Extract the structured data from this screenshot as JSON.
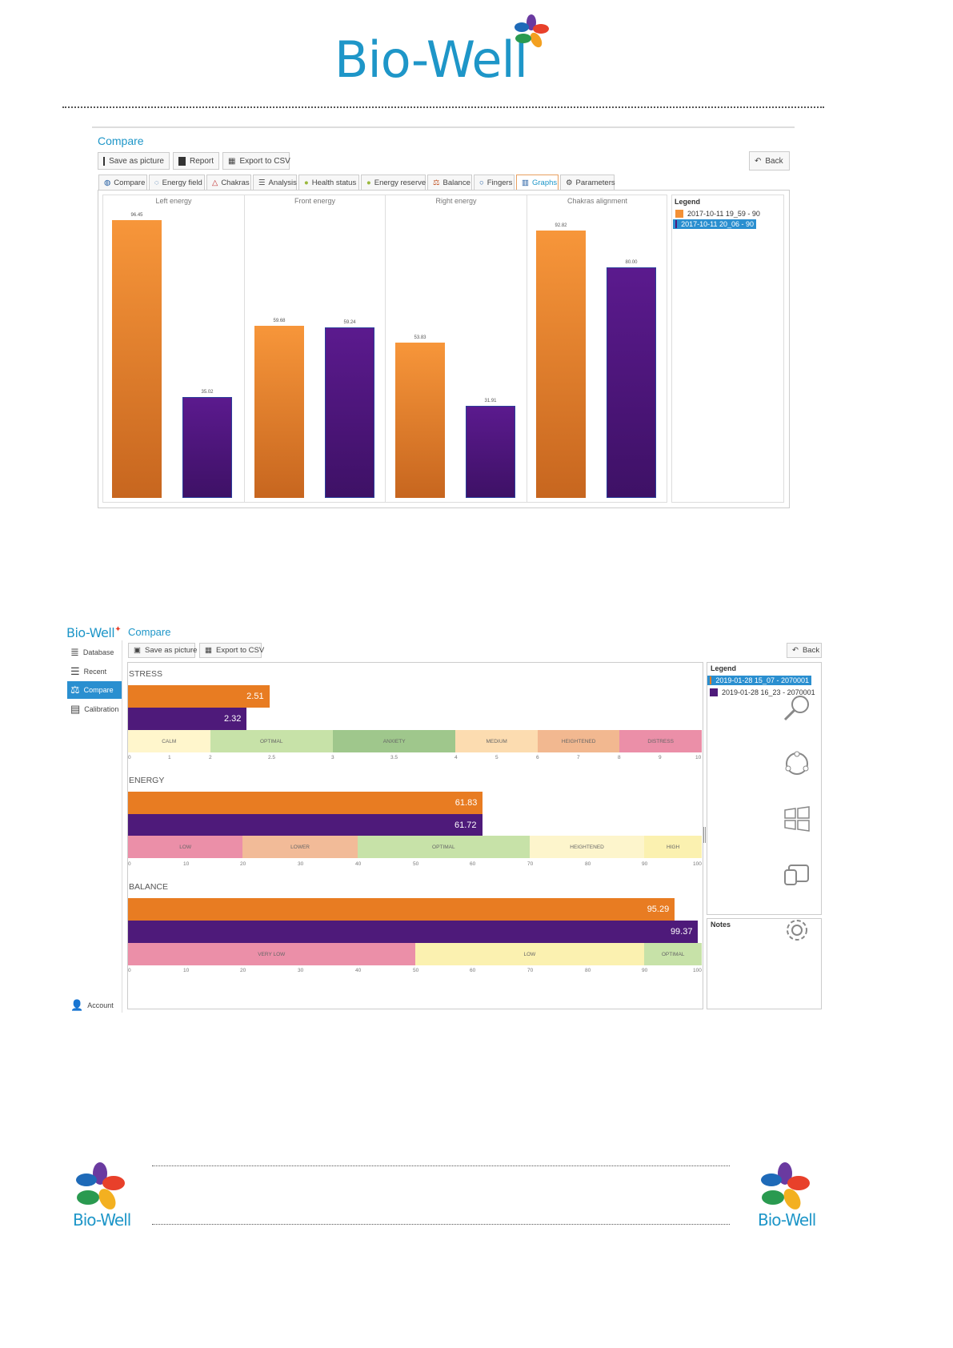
{
  "brand": {
    "name": "Bio-Well"
  },
  "screen1": {
    "title": "Compare",
    "toolbar": {
      "save": "Save as picture",
      "report": "Report",
      "export": "Export to CSV",
      "back": "Back"
    },
    "tabs": [
      "Compare",
      "Energy field",
      "Chakras",
      "Analysis",
      "Health status",
      "Energy reserve",
      "Balance",
      "Fingers",
      "Graphs",
      "Parameters"
    ],
    "legend_title": "Legend",
    "legend": [
      "2017-10-11 19_59 - 90",
      "2017-10-11 20_06 - 90"
    ],
    "series_colors": [
      "#f39035",
      "#4e1a7a"
    ],
    "chart_data": {
      "type": "bar",
      "categories": [
        "Left energy",
        "Front energy",
        "Right energy",
        "Chakras alignment"
      ],
      "series": [
        {
          "name": "2017-10-11 19_59 - 90",
          "values": [
            96.45,
            59.68,
            53.83,
            92.82
          ]
        },
        {
          "name": "2017-10-11 20_06 - 90",
          "values": [
            35.02,
            59.24,
            31.91,
            80.0
          ]
        }
      ],
      "labels": [
        [
          "96.45",
          "35.02"
        ],
        [
          "59.68",
          "59.24"
        ],
        [
          "53.83",
          "31.91"
        ],
        [
          "92.82",
          "80.00"
        ]
      ]
    }
  },
  "screen2": {
    "title": "Compare",
    "toolbar": {
      "save": "Save as picture",
      "export": "Export to CSV",
      "back": "Back"
    },
    "sidebar": [
      "Database",
      "Recent",
      "Compare",
      "Calibration"
    ],
    "account": "Account",
    "legend_title": "Legend",
    "legend": [
      "2019-01-28 15_07 - 2070001",
      "2019-01-28 16_23 - 2070001"
    ],
    "notes_title": "Notes",
    "chart_data": {
      "type": "bar",
      "orientation": "horizontal",
      "categories": [
        "STRESS",
        "ENERGY",
        "BALANCE"
      ],
      "series": [
        {
          "name": "2019-01-28 15_07 - 2070001",
          "values": [
            2.51,
            61.83,
            95.29
          ]
        },
        {
          "name": "2019-01-28 16_23 - 2070001",
          "values": [
            2.32,
            61.72,
            99.37
          ]
        }
      ],
      "labels": [
        [
          "2.51",
          "2.32"
        ],
        [
          "61.83",
          "61.72"
        ],
        [
          "95.29",
          "99.37"
        ]
      ],
      "scales": [
        {
          "zones": [
            "CALM",
            "OPTIMAL",
            "ANXIETY",
            "MEDIUM",
            "HEIGHTENED",
            "DISTRESS"
          ],
          "ticks": [
            "0",
            "1",
            "2",
            "2.5",
            "3",
            "3.5",
            "4",
            "5",
            "6",
            "7",
            "8",
            "9",
            "10"
          ]
        },
        {
          "zones": [
            "LOW",
            "LOWER",
            "OPTIMAL",
            "HEIGHTENED",
            "HIGH"
          ],
          "ticks": [
            "0",
            "10",
            "20",
            "30",
            "40",
            "50",
            "60",
            "70",
            "80",
            "90",
            "100"
          ]
        },
        {
          "zones": [
            "VERY LOW",
            "LOW",
            "OPTIMAL"
          ],
          "ticks": [
            "0",
            "10",
            "20",
            "30",
            "40",
            "50",
            "60",
            "70",
            "80",
            "90",
            "100"
          ]
        }
      ]
    }
  }
}
